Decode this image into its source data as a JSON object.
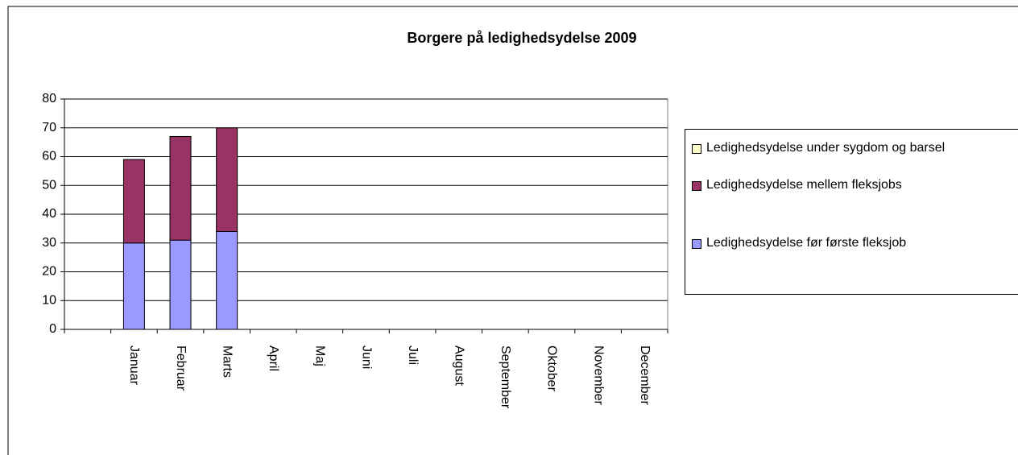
{
  "chart_data": {
    "type": "bar",
    "stacked": true,
    "title": "Borgere på ledighedsydelse 2009",
    "categories": [
      null,
      "Januar",
      "Februar",
      "Marts",
      "April",
      "Maj",
      "Juni",
      "Juli",
      "August",
      "September",
      "Oktober",
      "November",
      "December"
    ],
    "series": [
      {
        "name": "Ledighedsydelse før første fleksjob",
        "color": "#9999ff",
        "values": [
          null,
          30,
          31,
          34,
          null,
          null,
          null,
          null,
          null,
          null,
          null,
          null,
          null
        ]
      },
      {
        "name": "Ledighedsydelse mellem fleksjobs",
        "color": "#993366",
        "values": [
          null,
          29,
          36,
          36,
          null,
          null,
          null,
          null,
          null,
          null,
          null,
          null,
          null
        ]
      },
      {
        "name": "Ledighedsydelse under sygdom og barsel",
        "color": "#ffffcc",
        "values": [
          null,
          null,
          null,
          null,
          null,
          null,
          null,
          null,
          null,
          null,
          null,
          null,
          null
        ]
      }
    ],
    "ylim": [
      0,
      80
    ],
    "yticks": [
      0,
      10,
      20,
      30,
      40,
      50,
      60,
      70,
      80
    ],
    "grid": true,
    "legend": "right"
  }
}
